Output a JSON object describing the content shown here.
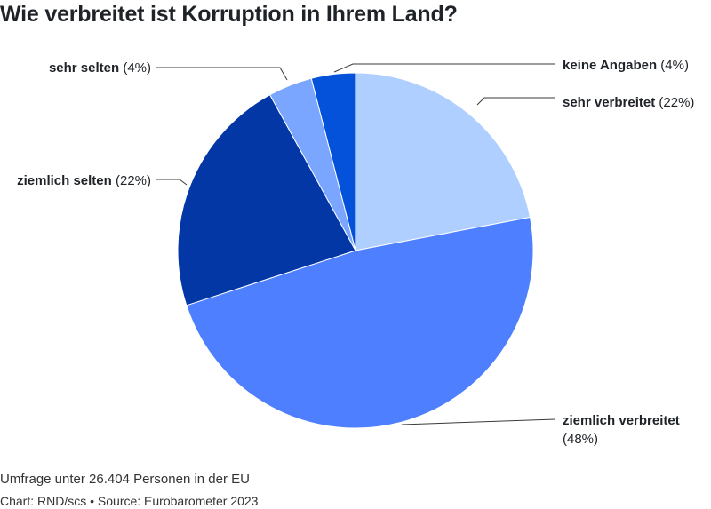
{
  "chart_data": {
    "type": "pie",
    "title": "Wie verbreitet ist Korruption in Ihrem Land?",
    "slices": [
      {
        "key": "sehr_verbreitet",
        "label": "sehr verbreitet",
        "pct_text": "(22%)",
        "value": 22,
        "color": "#aecfff"
      },
      {
        "key": "ziemlich_verbreitet",
        "label": "ziemlich verbreitet",
        "pct_text": "(48%)",
        "value": 48,
        "color": "#4e7ffe"
      },
      {
        "key": "ziemlich_selten",
        "label": "ziemlich selten",
        "pct_text": "(22%)",
        "value": 22,
        "color": "#0337a6"
      },
      {
        "key": "sehr_selten",
        "label": "sehr selten",
        "pct_text": "(4%)",
        "value": 4,
        "color": "#7aa6ff"
      },
      {
        "key": "keine_angaben",
        "label": "keine Angaben",
        "pct_text": "(4%)",
        "value": 4,
        "color": "#0452d9"
      }
    ],
    "legend": "none"
  },
  "footnote": "Umfrage unter 26.404 Personen in der EU",
  "credit": "Chart: RND/scs • Source: Eurobarometer 2023"
}
